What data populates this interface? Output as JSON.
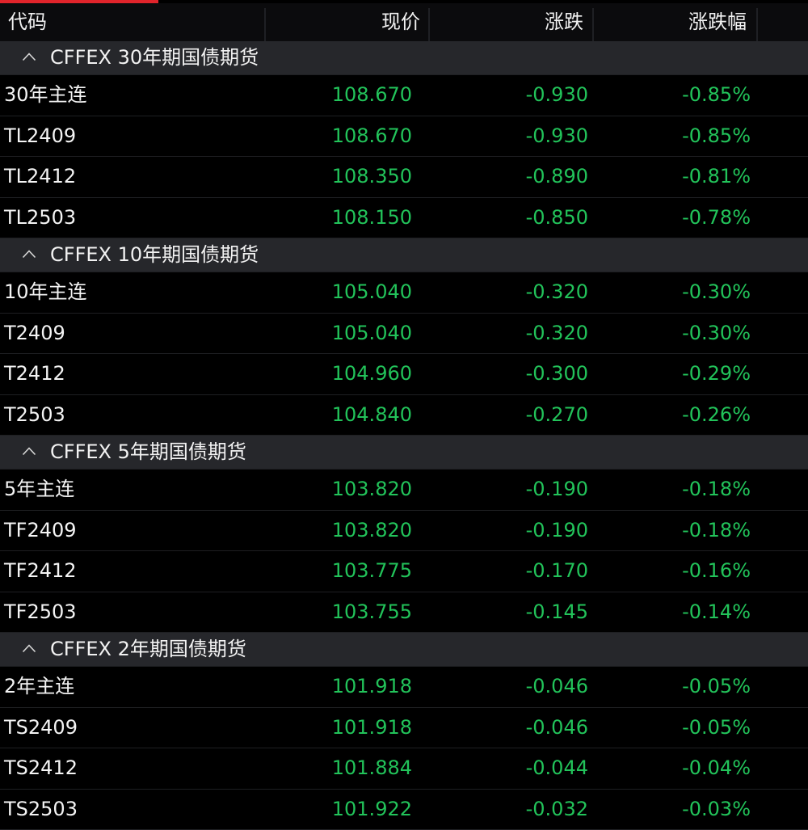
{
  "colors": {
    "accent_red": "#e0242b",
    "down_green": "#22c35a",
    "group_header_bg": "#26272b",
    "background": "#000000"
  },
  "columns": {
    "code": "代码",
    "price": "现价",
    "change": "涨跌",
    "change_pct": "涨跌幅"
  },
  "groups": [
    {
      "title": "CFFEX 30年期国债期货",
      "icon": "chevron-up-icon",
      "rows": [
        {
          "code": "30年主连",
          "price": "108.670",
          "change": "-0.930",
          "pct": "-0.85%"
        },
        {
          "code": "TL2409",
          "price": "108.670",
          "change": "-0.930",
          "pct": "-0.85%"
        },
        {
          "code": "TL2412",
          "price": "108.350",
          "change": "-0.890",
          "pct": "-0.81%"
        },
        {
          "code": "TL2503",
          "price": "108.150",
          "change": "-0.850",
          "pct": "-0.78%"
        }
      ]
    },
    {
      "title": "CFFEX 10年期国债期货",
      "icon": "chevron-up-icon",
      "rows": [
        {
          "code": "10年主连",
          "price": "105.040",
          "change": "-0.320",
          "pct": "-0.30%"
        },
        {
          "code": "T2409",
          "price": "105.040",
          "change": "-0.320",
          "pct": "-0.30%"
        },
        {
          "code": "T2412",
          "price": "104.960",
          "change": "-0.300",
          "pct": "-0.29%"
        },
        {
          "code": "T2503",
          "price": "104.840",
          "change": "-0.270",
          "pct": "-0.26%"
        }
      ]
    },
    {
      "title": "CFFEX 5年期国债期货",
      "icon": "chevron-up-icon",
      "rows": [
        {
          "code": "5年主连",
          "price": "103.820",
          "change": "-0.190",
          "pct": "-0.18%"
        },
        {
          "code": "TF2409",
          "price": "103.820",
          "change": "-0.190",
          "pct": "-0.18%"
        },
        {
          "code": "TF2412",
          "price": "103.775",
          "change": "-0.170",
          "pct": "-0.16%"
        },
        {
          "code": "TF2503",
          "price": "103.755",
          "change": "-0.145",
          "pct": "-0.14%"
        }
      ]
    },
    {
      "title": "CFFEX 2年期国债期货",
      "icon": "chevron-up-icon",
      "rows": [
        {
          "code": "2年主连",
          "price": "101.918",
          "change": "-0.046",
          "pct": "-0.05%"
        },
        {
          "code": "TS2409",
          "price": "101.918",
          "change": "-0.046",
          "pct": "-0.05%"
        },
        {
          "code": "TS2412",
          "price": "101.884",
          "change": "-0.044",
          "pct": "-0.04%"
        },
        {
          "code": "TS2503",
          "price": "101.922",
          "change": "-0.032",
          "pct": "-0.03%"
        }
      ]
    }
  ]
}
